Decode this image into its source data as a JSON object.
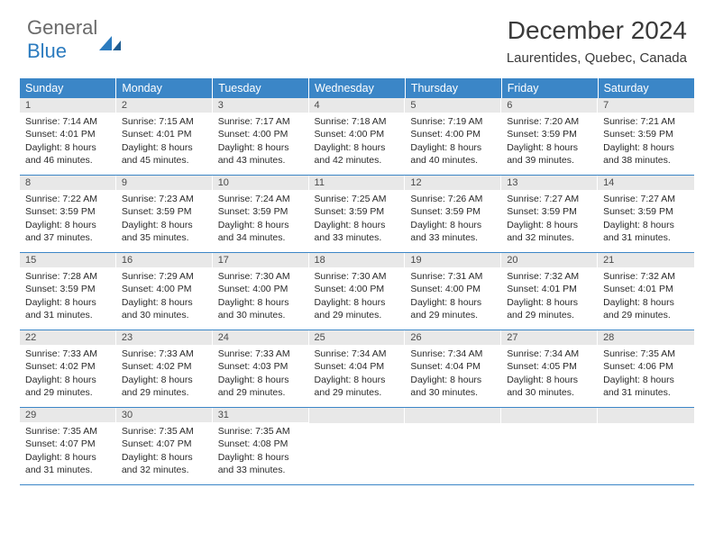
{
  "logo": {
    "line1": "General",
    "line2": "Blue"
  },
  "title": "December 2024",
  "location": "Laurentides, Quebec, Canada",
  "colors": {
    "header_bg": "#3b86c7",
    "daynum_bg": "#e8e8e8",
    "rule": "#3b86c7",
    "text": "#2a2a2a",
    "logo_blue": "#2b7bbf"
  },
  "weekdays": [
    "Sunday",
    "Monday",
    "Tuesday",
    "Wednesday",
    "Thursday",
    "Friday",
    "Saturday"
  ],
  "labels": {
    "sunrise": "Sunrise:",
    "sunset": "Sunset:",
    "daylight": "Daylight:"
  },
  "weeks": [
    [
      {
        "n": 1,
        "sr": "7:14 AM",
        "ss": "4:01 PM",
        "dl": "8 hours and 46 minutes."
      },
      {
        "n": 2,
        "sr": "7:15 AM",
        "ss": "4:01 PM",
        "dl": "8 hours and 45 minutes."
      },
      {
        "n": 3,
        "sr": "7:17 AM",
        "ss": "4:00 PM",
        "dl": "8 hours and 43 minutes."
      },
      {
        "n": 4,
        "sr": "7:18 AM",
        "ss": "4:00 PM",
        "dl": "8 hours and 42 minutes."
      },
      {
        "n": 5,
        "sr": "7:19 AM",
        "ss": "4:00 PM",
        "dl": "8 hours and 40 minutes."
      },
      {
        "n": 6,
        "sr": "7:20 AM",
        "ss": "3:59 PM",
        "dl": "8 hours and 39 minutes."
      },
      {
        "n": 7,
        "sr": "7:21 AM",
        "ss": "3:59 PM",
        "dl": "8 hours and 38 minutes."
      }
    ],
    [
      {
        "n": 8,
        "sr": "7:22 AM",
        "ss": "3:59 PM",
        "dl": "8 hours and 37 minutes."
      },
      {
        "n": 9,
        "sr": "7:23 AM",
        "ss": "3:59 PM",
        "dl": "8 hours and 35 minutes."
      },
      {
        "n": 10,
        "sr": "7:24 AM",
        "ss": "3:59 PM",
        "dl": "8 hours and 34 minutes."
      },
      {
        "n": 11,
        "sr": "7:25 AM",
        "ss": "3:59 PM",
        "dl": "8 hours and 33 minutes."
      },
      {
        "n": 12,
        "sr": "7:26 AM",
        "ss": "3:59 PM",
        "dl": "8 hours and 33 minutes."
      },
      {
        "n": 13,
        "sr": "7:27 AM",
        "ss": "3:59 PM",
        "dl": "8 hours and 32 minutes."
      },
      {
        "n": 14,
        "sr": "7:27 AM",
        "ss": "3:59 PM",
        "dl": "8 hours and 31 minutes."
      }
    ],
    [
      {
        "n": 15,
        "sr": "7:28 AM",
        "ss": "3:59 PM",
        "dl": "8 hours and 31 minutes."
      },
      {
        "n": 16,
        "sr": "7:29 AM",
        "ss": "4:00 PM",
        "dl": "8 hours and 30 minutes."
      },
      {
        "n": 17,
        "sr": "7:30 AM",
        "ss": "4:00 PM",
        "dl": "8 hours and 30 minutes."
      },
      {
        "n": 18,
        "sr": "7:30 AM",
        "ss": "4:00 PM",
        "dl": "8 hours and 29 minutes."
      },
      {
        "n": 19,
        "sr": "7:31 AM",
        "ss": "4:00 PM",
        "dl": "8 hours and 29 minutes."
      },
      {
        "n": 20,
        "sr": "7:32 AM",
        "ss": "4:01 PM",
        "dl": "8 hours and 29 minutes."
      },
      {
        "n": 21,
        "sr": "7:32 AM",
        "ss": "4:01 PM",
        "dl": "8 hours and 29 minutes."
      }
    ],
    [
      {
        "n": 22,
        "sr": "7:33 AM",
        "ss": "4:02 PM",
        "dl": "8 hours and 29 minutes."
      },
      {
        "n": 23,
        "sr": "7:33 AM",
        "ss": "4:02 PM",
        "dl": "8 hours and 29 minutes."
      },
      {
        "n": 24,
        "sr": "7:33 AM",
        "ss": "4:03 PM",
        "dl": "8 hours and 29 minutes."
      },
      {
        "n": 25,
        "sr": "7:34 AM",
        "ss": "4:04 PM",
        "dl": "8 hours and 29 minutes."
      },
      {
        "n": 26,
        "sr": "7:34 AM",
        "ss": "4:04 PM",
        "dl": "8 hours and 30 minutes."
      },
      {
        "n": 27,
        "sr": "7:34 AM",
        "ss": "4:05 PM",
        "dl": "8 hours and 30 minutes."
      },
      {
        "n": 28,
        "sr": "7:35 AM",
        "ss": "4:06 PM",
        "dl": "8 hours and 31 minutes."
      }
    ],
    [
      {
        "n": 29,
        "sr": "7:35 AM",
        "ss": "4:07 PM",
        "dl": "8 hours and 31 minutes."
      },
      {
        "n": 30,
        "sr": "7:35 AM",
        "ss": "4:07 PM",
        "dl": "8 hours and 32 minutes."
      },
      {
        "n": 31,
        "sr": "7:35 AM",
        "ss": "4:08 PM",
        "dl": "8 hours and 33 minutes."
      },
      null,
      null,
      null,
      null
    ]
  ]
}
